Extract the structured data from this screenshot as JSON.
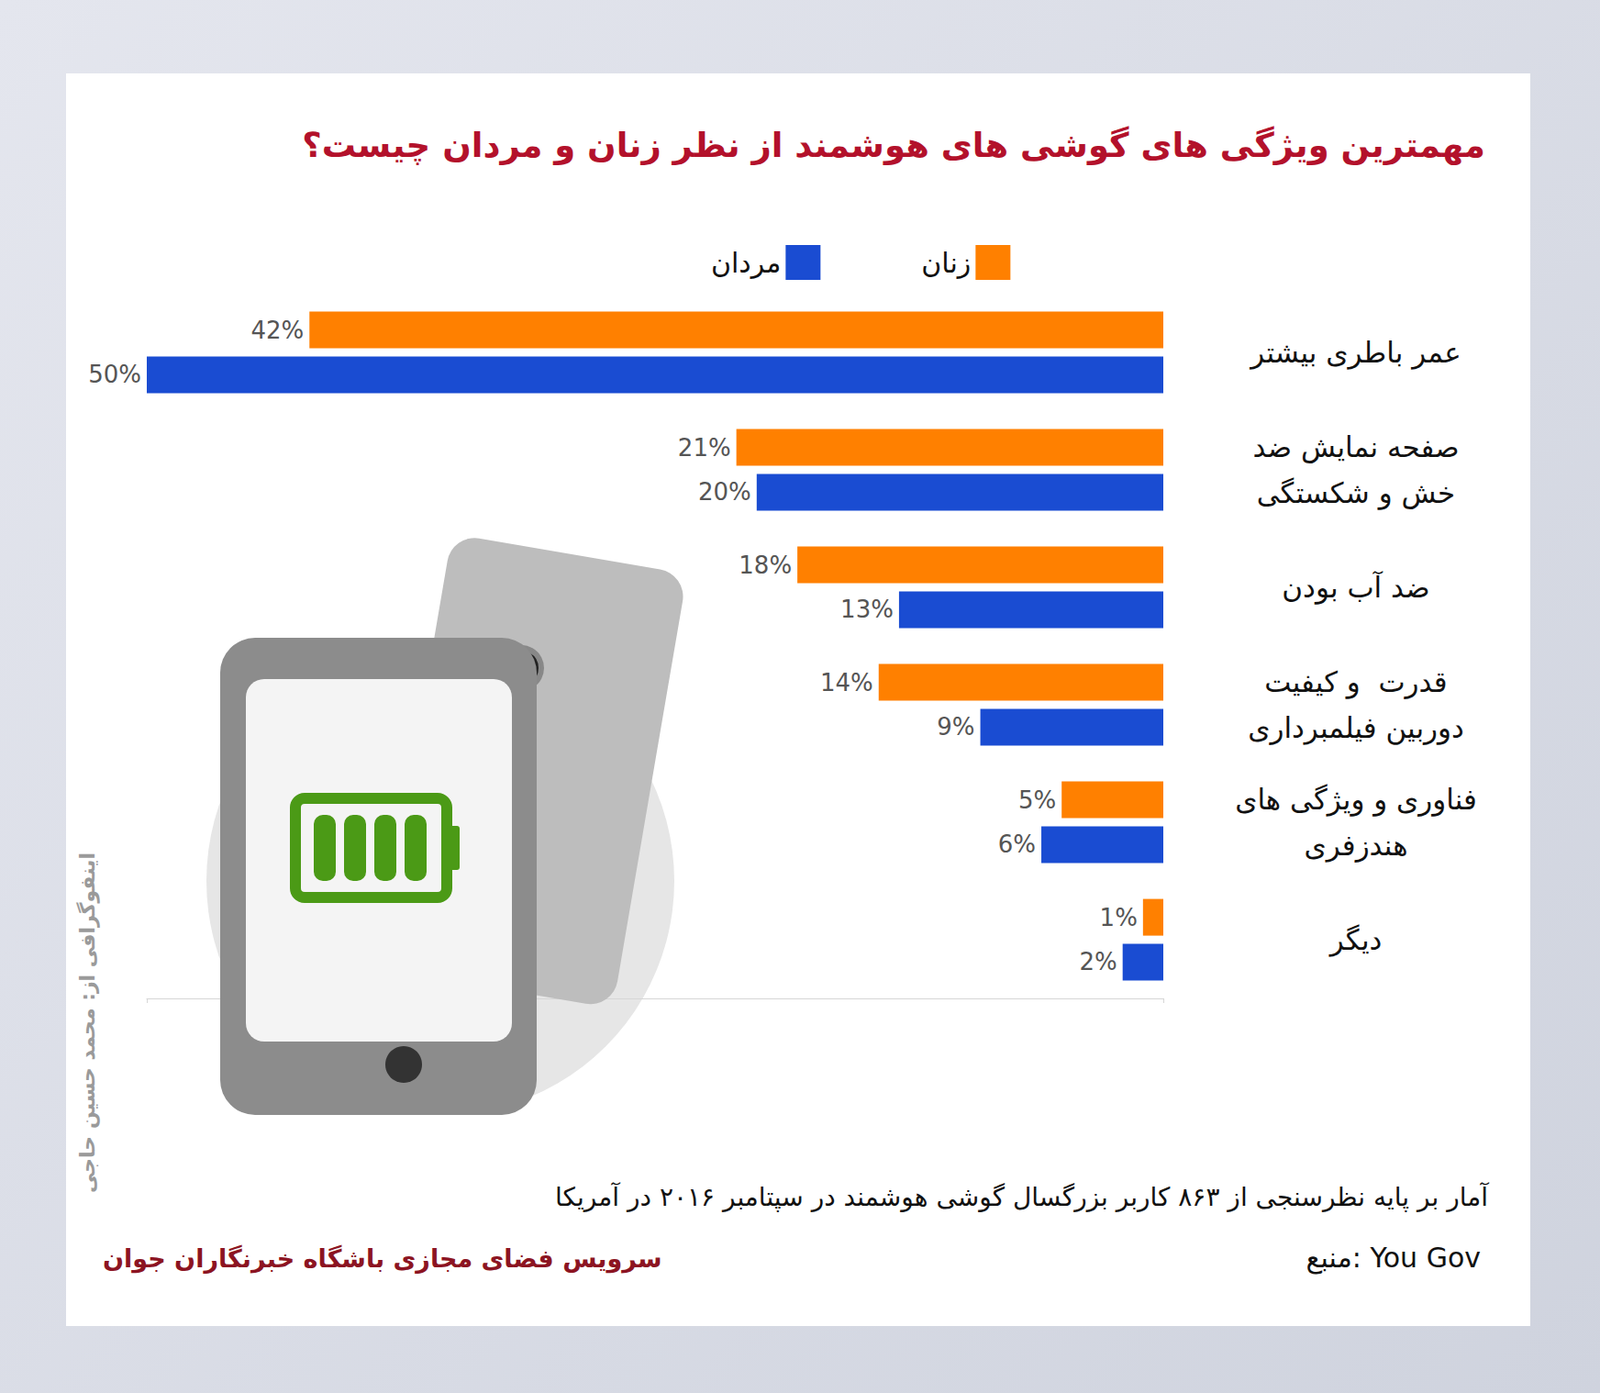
{
  "chart_data": {
    "type": "bar",
    "orientation": "horizontal",
    "title": "مهمترین ویژگی های گوشی های هوشمند از نظر زنان و مردان چیست؟",
    "categories": [
      "عمر باطری بیشتر",
      "صفحه نمایش ضد\nخش و شکستگی",
      "ضد آب بودن",
      "قدرت  و کیفیت\nدوربین فیلمبرداری",
      "فناوری و ویژگی های\nهندزفری",
      "دیگر"
    ],
    "series": [
      {
        "name": "زنان",
        "color": "#ff8000",
        "values": [
          42,
          21,
          18,
          14,
          5,
          1
        ],
        "value_labels": [
          "42%",
          "21%",
          "18%",
          "14%",
          "5%",
          "1%"
        ]
      },
      {
        "name": "مردان",
        "color": "#1a4cd2",
        "values": [
          50,
          20,
          13,
          9,
          6,
          2
        ],
        "value_labels": [
          "50%",
          "20%",
          "13%",
          "9%",
          "6%",
          "2%"
        ]
      }
    ],
    "xlim": [
      0,
      50
    ],
    "xticks": [
      0,
      50
    ],
    "grid": false,
    "legend": "top",
    "data_labels": true,
    "tick_labels": "y",
    "annotations": [
      "آمار بر پایه نظرسنجی از ۸۶۳ کاربر بزرگسال گوشی هوشمند در سپتامبر ۲۰۱۶ در آمریکا",
      "منبع: You Gov",
      "سرویس فضای مجازی باشگاه خبرنگاران جوان",
      "اینفوگرافی از: محمد حسین حاجی"
    ]
  }
}
